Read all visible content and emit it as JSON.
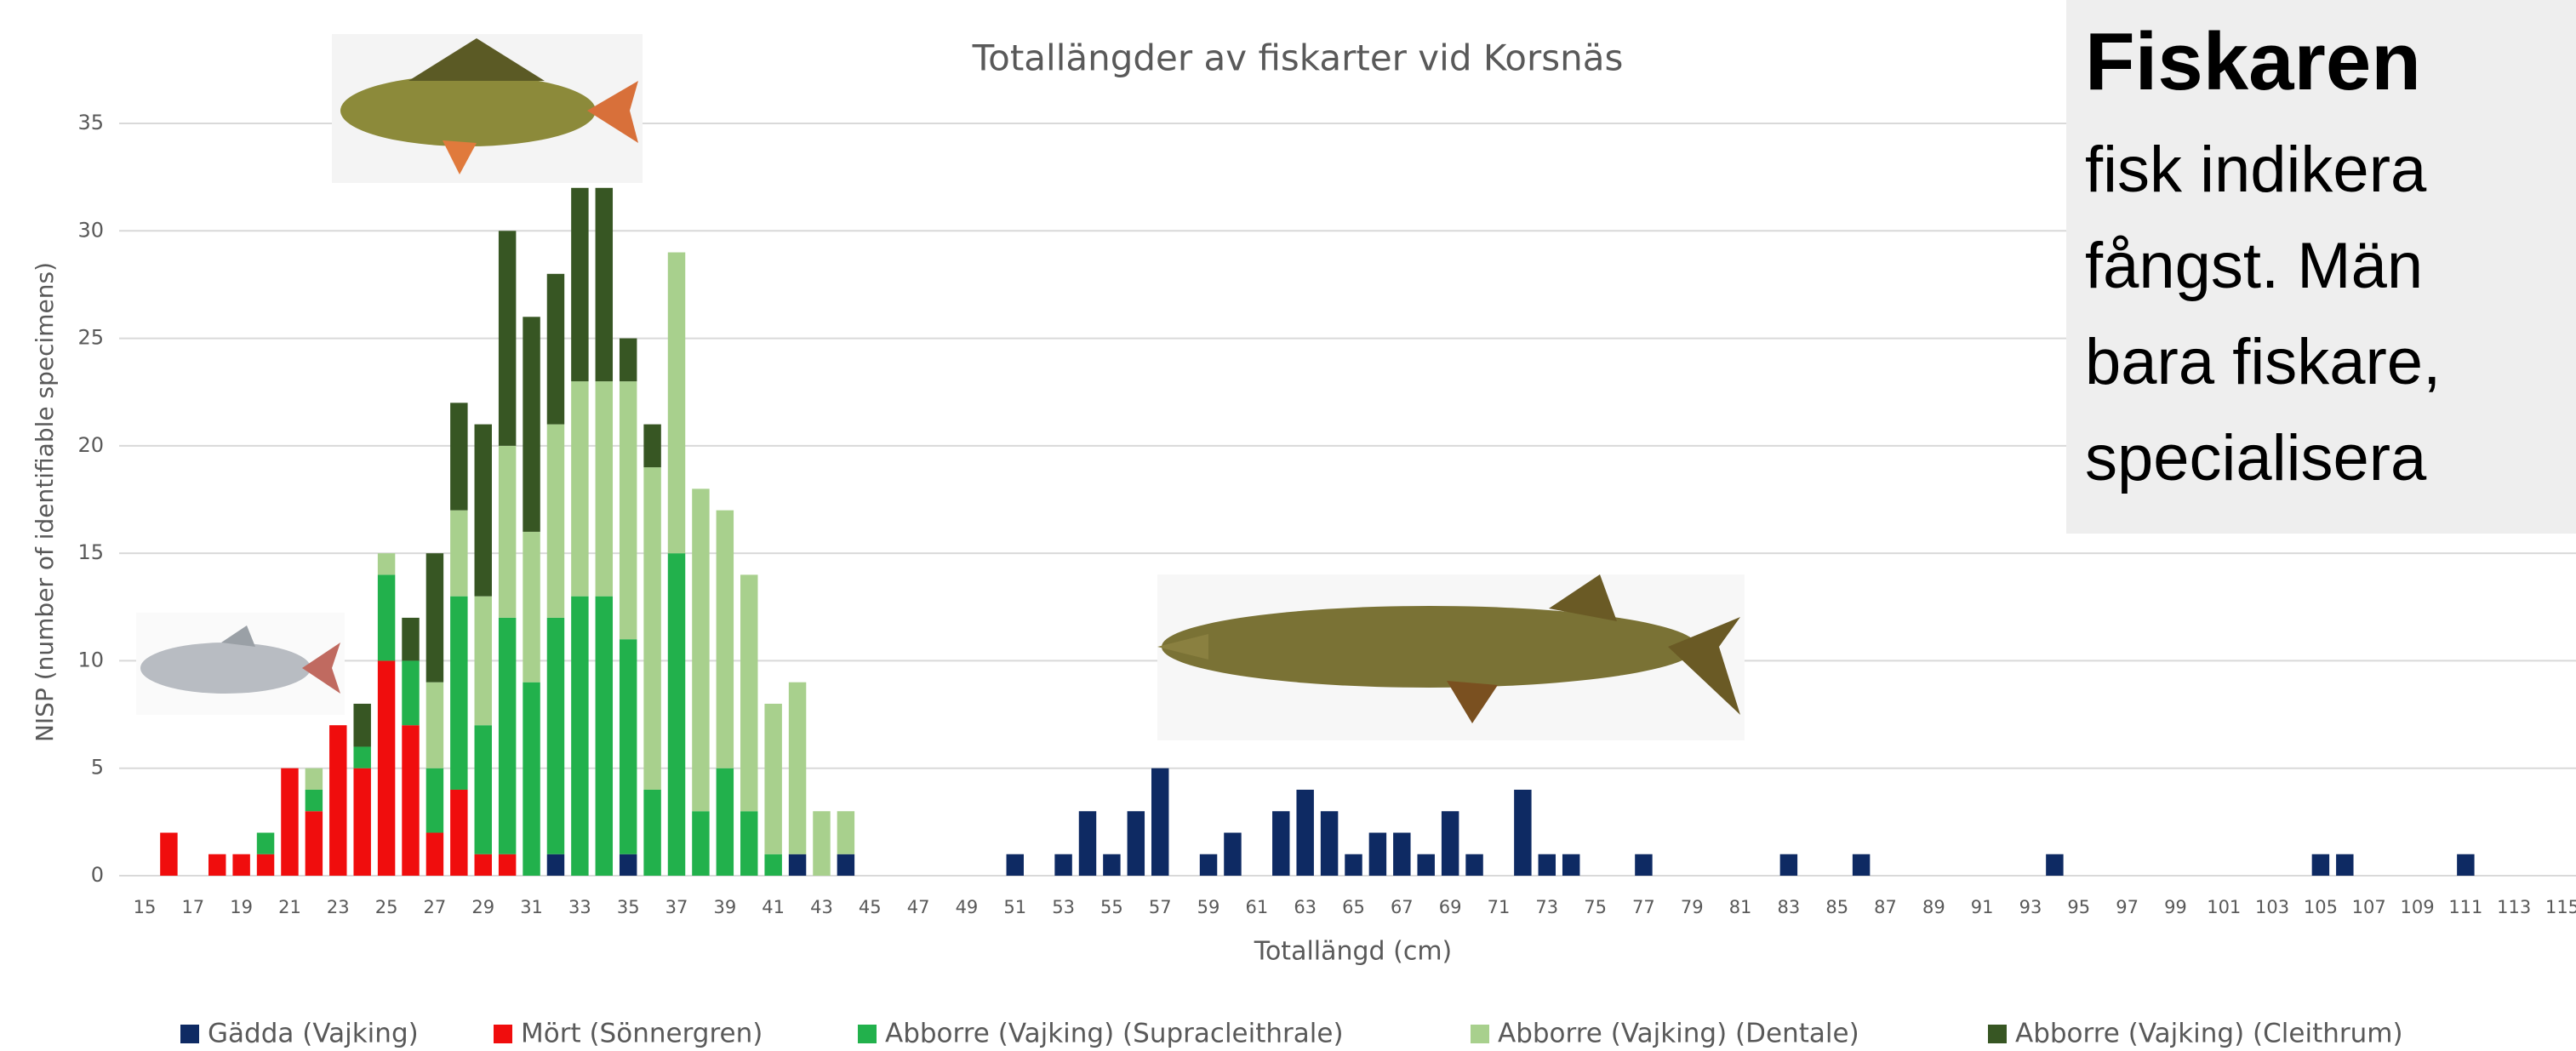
{
  "chart_data": {
    "type": "stacked_bar",
    "title": "Totallängder av fiskarter vid Korsnäs",
    "x_label": "Totallängd (cm)",
    "y_label": "NISP (number of identifiable specimens)",
    "categories": [
      "15",
      null,
      "17",
      null,
      "19",
      null,
      "21",
      null,
      "23",
      null,
      "25",
      null,
      "27",
      null,
      "29",
      null,
      "31",
      null,
      "33",
      null,
      "35",
      null,
      "37",
      null,
      "39",
      null,
      "41",
      null,
      "43",
      null,
      "45",
      null,
      "47",
      null,
      "49",
      null,
      "51",
      null,
      "53",
      null,
      "55",
      null,
      "57",
      null,
      "59",
      null,
      "61",
      null,
      "63",
      null,
      "65",
      null,
      "67",
      null,
      "69",
      null,
      "71",
      null,
      "73",
      null,
      "75",
      null,
      "77",
      null,
      "79",
      null,
      "81",
      null,
      "83",
      null,
      "85",
      null,
      "87",
      null,
      "89",
      null,
      "91",
      null,
      "93",
      null,
      "95",
      null,
      "97",
      null,
      "99",
      null,
      "101",
      null,
      "103",
      null,
      "105",
      null,
      "107",
      null,
      "109",
      null,
      "111",
      null,
      "113",
      null,
      "115"
    ],
    "series": [
      {
        "name": "Gädda (Vajking)",
        "color": "#0e2a63",
        "values": [
          0,
          0,
          0,
          0,
          0,
          0,
          0,
          0,
          0,
          0,
          0,
          0,
          0,
          0,
          0,
          0,
          0,
          1,
          0,
          0,
          1,
          0,
          0,
          0,
          0,
          0,
          0,
          1,
          0,
          1,
          0,
          0,
          0,
          0,
          0,
          0,
          1,
          0,
          1,
          3,
          1,
          3,
          5,
          0,
          1,
          2,
          0,
          3,
          4,
          3,
          1,
          2,
          2,
          1,
          3,
          1,
          0,
          4,
          1,
          1,
          0,
          0,
          1,
          0,
          0,
          0,
          0,
          0,
          1,
          0,
          0,
          1,
          0,
          0,
          0,
          0,
          0,
          0,
          0,
          1,
          0,
          0,
          0,
          0,
          0,
          0,
          0,
          0,
          0,
          0,
          1,
          1,
          0,
          0,
          0,
          0,
          1,
          0,
          0,
          0,
          0
        ]
      },
      {
        "name": "Mört (Sönnergren)",
        "color": "#f00d0d",
        "values": [
          0,
          2,
          0,
          1,
          1,
          1,
          5,
          3,
          7,
          5,
          10,
          7,
          2,
          4,
          1,
          1,
          0,
          0,
          0,
          0,
          0,
          0,
          0,
          0,
          0,
          0,
          0,
          0,
          0,
          0,
          0,
          0,
          0,
          0,
          0,
          0,
          0,
          0,
          0,
          0,
          0,
          0,
          0,
          0,
          0,
          0,
          0,
          0,
          0,
          0,
          0,
          0,
          0,
          0,
          0,
          0,
          0,
          0,
          0,
          0,
          0,
          0,
          0,
          0,
          0,
          0,
          0,
          0,
          0,
          0,
          0,
          0,
          0,
          0,
          0,
          0,
          0,
          0,
          0,
          0,
          0,
          0,
          0,
          0,
          0,
          0,
          0,
          0,
          0,
          0,
          0,
          0,
          0,
          0,
          0,
          0,
          0,
          0,
          0,
          0,
          0
        ]
      },
      {
        "name": "Abborre (Vajking) (Supracleithrale)",
        "color": "#22b14c",
        "values": [
          0,
          0,
          0,
          0,
          0,
          1,
          0,
          1,
          0,
          1,
          4,
          3,
          3,
          9,
          6,
          11,
          9,
          11,
          13,
          13,
          10,
          4,
          15,
          3,
          5,
          3,
          1,
          0,
          0,
          0,
          0,
          0,
          0,
          0,
          0,
          0,
          0,
          0,
          0,
          0,
          0,
          0,
          0,
          0,
          0,
          0,
          0,
          0,
          0,
          0,
          0,
          0,
          0,
          0,
          0,
          0,
          0,
          0,
          0,
          0,
          0,
          0,
          0,
          0,
          0,
          0,
          0,
          0,
          0,
          0,
          0,
          0,
          0,
          0,
          0,
          0,
          0,
          0,
          0,
          0,
          0,
          0,
          0,
          0,
          0,
          0,
          0,
          0,
          0,
          0,
          0,
          0,
          0,
          0,
          0,
          0,
          0,
          0,
          0,
          0,
          0
        ]
      },
      {
        "name": "Abborre (Vajking) (Dentale)",
        "color": "#a8d08d",
        "values": [
          0,
          0,
          0,
          0,
          0,
          0,
          0,
          1,
          0,
          0,
          1,
          0,
          4,
          4,
          6,
          8,
          7,
          9,
          10,
          10,
          12,
          15,
          14,
          15,
          12,
          11,
          7,
          8,
          3,
          2,
          0,
          0,
          0,
          0,
          0,
          0,
          0,
          0,
          0,
          0,
          0,
          0,
          0,
          0,
          0,
          0,
          0,
          0,
          0,
          0,
          0,
          0,
          0,
          0,
          0,
          0,
          0,
          0,
          0,
          0,
          0,
          0,
          0,
          0,
          0,
          0,
          0,
          0,
          0,
          0,
          0,
          0,
          0,
          0,
          0,
          0,
          0,
          0,
          0,
          0,
          0,
          0,
          0,
          0,
          0,
          0,
          0,
          0,
          0,
          0,
          0,
          0,
          0,
          0,
          0,
          0,
          0,
          0,
          0,
          0,
          0
        ]
      },
      {
        "name": "Abborre (Vajking) (Cleithrum)",
        "color": "#375623",
        "values": [
          0,
          0,
          0,
          0,
          0,
          0,
          0,
          0,
          0,
          2,
          0,
          2,
          6,
          5,
          8,
          10,
          10,
          7,
          9,
          9,
          2,
          2,
          0,
          0,
          0,
          0,
          0,
          0,
          0,
          0,
          0,
          0,
          0,
          0,
          0,
          0,
          0,
          0,
          0,
          0,
          0,
          0,
          0,
          0,
          0,
          0,
          0,
          0,
          0,
          0,
          0,
          0,
          0,
          0,
          0,
          0,
          0,
          0,
          0,
          0,
          0,
          0,
          0,
          0,
          0,
          0,
          0,
          0,
          0,
          0,
          0,
          0,
          0,
          0,
          0,
          0,
          0,
          0,
          0,
          0,
          0,
          0,
          0,
          0,
          0,
          0,
          0,
          0,
          0,
          0,
          0,
          0,
          0,
          0,
          0,
          0,
          0,
          0,
          0,
          0,
          0
        ]
      }
    ],
    "ylim": [
      0,
      35
    ],
    "yticks": [
      0,
      5,
      10,
      15,
      20,
      25,
      30,
      35
    ],
    "grid": true,
    "legend": "bottom"
  },
  "side_panel": {
    "title": "Fiskaren",
    "lines": [
      "fisk indikera",
      "fångst. Män",
      "bara fiskare,",
      "specialisera"
    ]
  }
}
